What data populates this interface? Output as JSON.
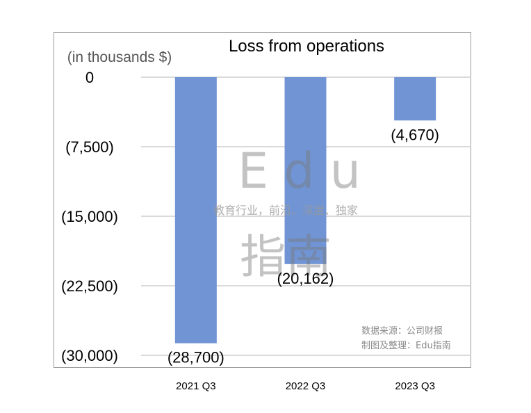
{
  "chart_data": {
    "type": "bar",
    "title": "Loss from operations",
    "unit_label": "(in thousands $)",
    "categories": [
      "2021 Q3",
      "2022 Q3",
      "2023 Q3"
    ],
    "values": [
      -28700,
      -20162,
      -4670
    ],
    "data_labels": [
      "(28,700)",
      "(20,162)",
      "(4,670)"
    ],
    "ylim": [
      -30000,
      0
    ],
    "yticks": [
      0,
      -7500,
      -15000,
      -22500,
      -30000
    ],
    "ytick_labels": [
      "0",
      "(7,500)",
      "(15,000)",
      "(22,500)",
      "(30,000)"
    ],
    "grid": true,
    "bar_color": "#7094d4"
  },
  "watermark": {
    "brand_latin": "Edu",
    "brand_chinese": "指南",
    "tagline": "教育行业，前沿、深度、独家"
  },
  "source_note": {
    "line1": "数据来源：公司财报",
    "line2": "制图及整理：Edu指南"
  }
}
